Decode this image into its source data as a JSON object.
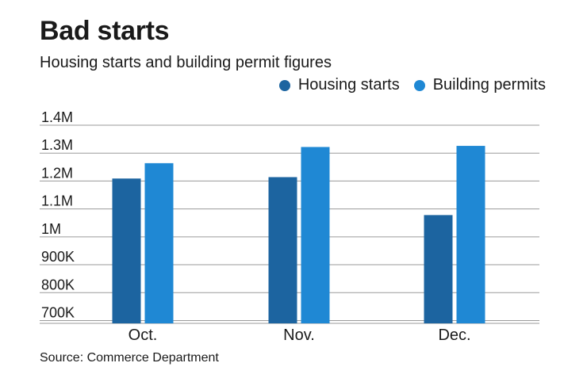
{
  "chart_data": {
    "type": "bar",
    "title": "Bad starts",
    "subtitle": "Housing starts and building permit figures",
    "categories": [
      "Oct.",
      "Nov.",
      "Dec."
    ],
    "series": [
      {
        "name": "Housing starts",
        "color": "#1c64a0",
        "values": [
          1209000,
          1214000,
          1078000
        ]
      },
      {
        "name": "Building permits",
        "color": "#1f88d4",
        "values": [
          1264000,
          1322000,
          1326000
        ]
      }
    ],
    "yticks": [
      700000,
      800000,
      900000,
      1000000,
      1100000,
      1200000,
      1300000,
      1400000
    ],
    "ytick_labels": [
      "700K",
      "800K",
      "900K",
      "1M",
      "1.1M",
      "1.2M",
      "1.3M",
      "1.4M"
    ],
    "ylim": [
      690000,
      1400000
    ],
    "grid": true,
    "legend_position": "top-right",
    "source": "Source: Commerce Department"
  }
}
